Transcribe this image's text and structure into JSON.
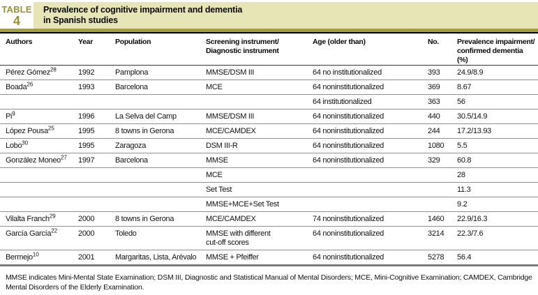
{
  "badge": {
    "label": "TABLE",
    "number": "4"
  },
  "title": "Prevalence of cognitive impairment and dementia\nin Spanish studies",
  "colors": {
    "accent_olive": "#a5a033",
    "band_beige": "#e7e4b6",
    "badge_text": "#97922c"
  },
  "table": {
    "columns": [
      "Authors",
      "Year",
      "Population",
      "Screening instrument/\nDiagnostic instrument",
      "Age (older than)",
      "No.",
      "Prevalence impairment/\nconfirmed dementia (%)"
    ],
    "rows": [
      {
        "author": "Pérez Gómez",
        "ref": "28",
        "year": "1992",
        "population": "Pamplona",
        "instrument": "MMSE/DSM III",
        "age": "64 no institutionalized",
        "n": "393",
        "prevalence": "24.9/8.9"
      },
      {
        "author": "Boada",
        "ref": "26",
        "year": "1993",
        "population": "Barcelona",
        "instrument": "MCE",
        "age": "64 noninstitutionalized",
        "n": "369",
        "prevalence": "8.67"
      },
      {
        "author": "",
        "ref": "",
        "year": "",
        "population": "",
        "instrument": "",
        "age": "64 institutionalized",
        "n": "363",
        "prevalence": "56"
      },
      {
        "author": "Pi",
        "ref": "9",
        "year": "1996",
        "population": "La Selva del Camp",
        "instrument": "MMSE/DSM III",
        "age": "64 noninstitutionalized",
        "n": "440",
        "prevalence": "30.5/14.9"
      },
      {
        "author": "López Pousa",
        "ref": "25",
        "year": "1995",
        "population": "8 towns in Gerona",
        "instrument": "MCE/CAMDEX",
        "age": "64 noninstitutionalized",
        "n": "244",
        "prevalence": "17.2/13.93"
      },
      {
        "author": "Lobo",
        "ref": "30",
        "year": "1995",
        "population": "Zaragoza",
        "instrument": "DSM III-R",
        "age": "64 noninstitutionalized",
        "n": "1080",
        "prevalence": "5.5"
      },
      {
        "author": "González Moneo",
        "ref": "27",
        "year": "1997",
        "population": "Barcelona",
        "instrument": "MMSE",
        "age": "64 noninstitutionalized",
        "n": "329",
        "prevalence": "60.8"
      },
      {
        "author": "",
        "ref": "",
        "year": "",
        "population": "",
        "instrument": "MCE",
        "age": "",
        "n": "",
        "prevalence": "28"
      },
      {
        "author": "",
        "ref": "",
        "year": "",
        "population": "",
        "instrument": "Set Test",
        "age": "",
        "n": "",
        "prevalence": "11.3"
      },
      {
        "author": "",
        "ref": "",
        "year": "",
        "population": "",
        "instrument": "MMSE+MCE+Set Test",
        "age": "",
        "n": "",
        "prevalence": "9.2"
      },
      {
        "author": "Vilalta Franch",
        "ref": "29",
        "year": "2000",
        "population": "8 towns in Gerona",
        "instrument": "MCE/CAMDEX",
        "age": "74 noninstitutionalized",
        "n": "1460",
        "prevalence": "22.9/16.3"
      },
      {
        "author": "García García",
        "ref": "22",
        "year": "2000",
        "population": "Toledo",
        "instrument": "MMSE with different\ncut-off scores",
        "age": "64 noninstitutionalized",
        "n": "3214",
        "prevalence": "22.3/7.6"
      },
      {
        "author": "Bermejo",
        "ref": "10",
        "year": "2001",
        "population": "Margaritas, Lista, Arévalo",
        "instrument": "MMSE + Pfeiffer",
        "age": "64 noninstitutionalized",
        "n": "5278",
        "prevalence": "56.4"
      }
    ]
  },
  "footnote": "MMSE indicates Mini-Mental State Examination; DSM III, Diagnostic and Statistical Manual of Mental Disorders; MCE, Mini-Cognitive Examination; CAMDEX, Cambridge Mental Disorders of the Elderly Examination."
}
